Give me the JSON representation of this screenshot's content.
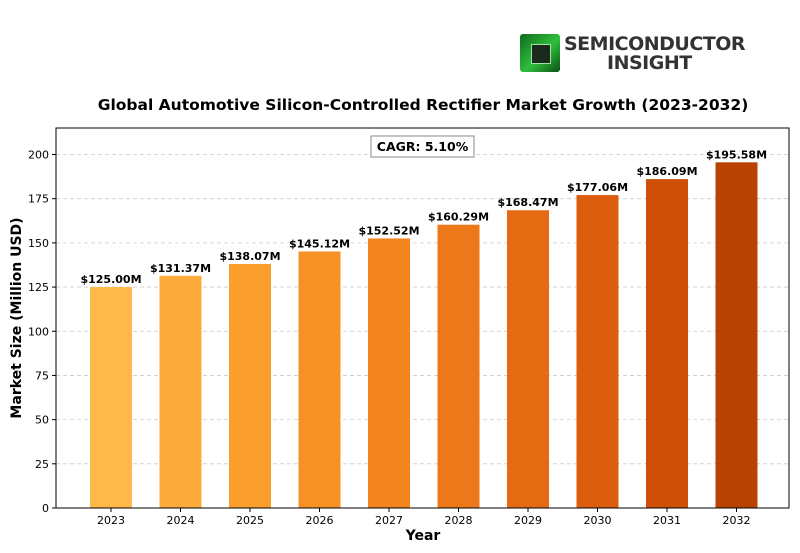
{
  "brand": {
    "line1": "SEMICONDUCTOR",
    "line2": "INSIGHT"
  },
  "chart_data": {
    "type": "bar",
    "title": "Global Automotive Silicon-Controlled Rectifier Market Growth (2023-2032)",
    "xlabel": "Year",
    "ylabel": "Market Size (Million USD)",
    "annotation": "CAGR: 5.10%",
    "categories": [
      "2023",
      "2024",
      "2025",
      "2026",
      "2027",
      "2028",
      "2029",
      "2030",
      "2031",
      "2032"
    ],
    "values": [
      125.0,
      131.37,
      138.07,
      145.12,
      152.52,
      160.29,
      168.47,
      177.06,
      186.09,
      195.58
    ],
    "data_labels": [
      "$125.00M",
      "$131.37M",
      "$138.07M",
      "$145.12M",
      "$152.52M",
      "$160.29M",
      "$168.47M",
      "$177.06M",
      "$186.09M",
      "$195.58M"
    ],
    "colors": [
      "#ffb84a",
      "#fdab3a",
      "#fb9e2e",
      "#f79125",
      "#f3851f",
      "#ec7819",
      "#e56b13",
      "#dc5d0d",
      "#cf4f06",
      "#b84303"
    ],
    "ylim": [
      0,
      215
    ],
    "yticks": [
      0,
      25,
      50,
      75,
      100,
      125,
      150,
      175,
      200
    ],
    "grid": "horizontal-dashed"
  }
}
